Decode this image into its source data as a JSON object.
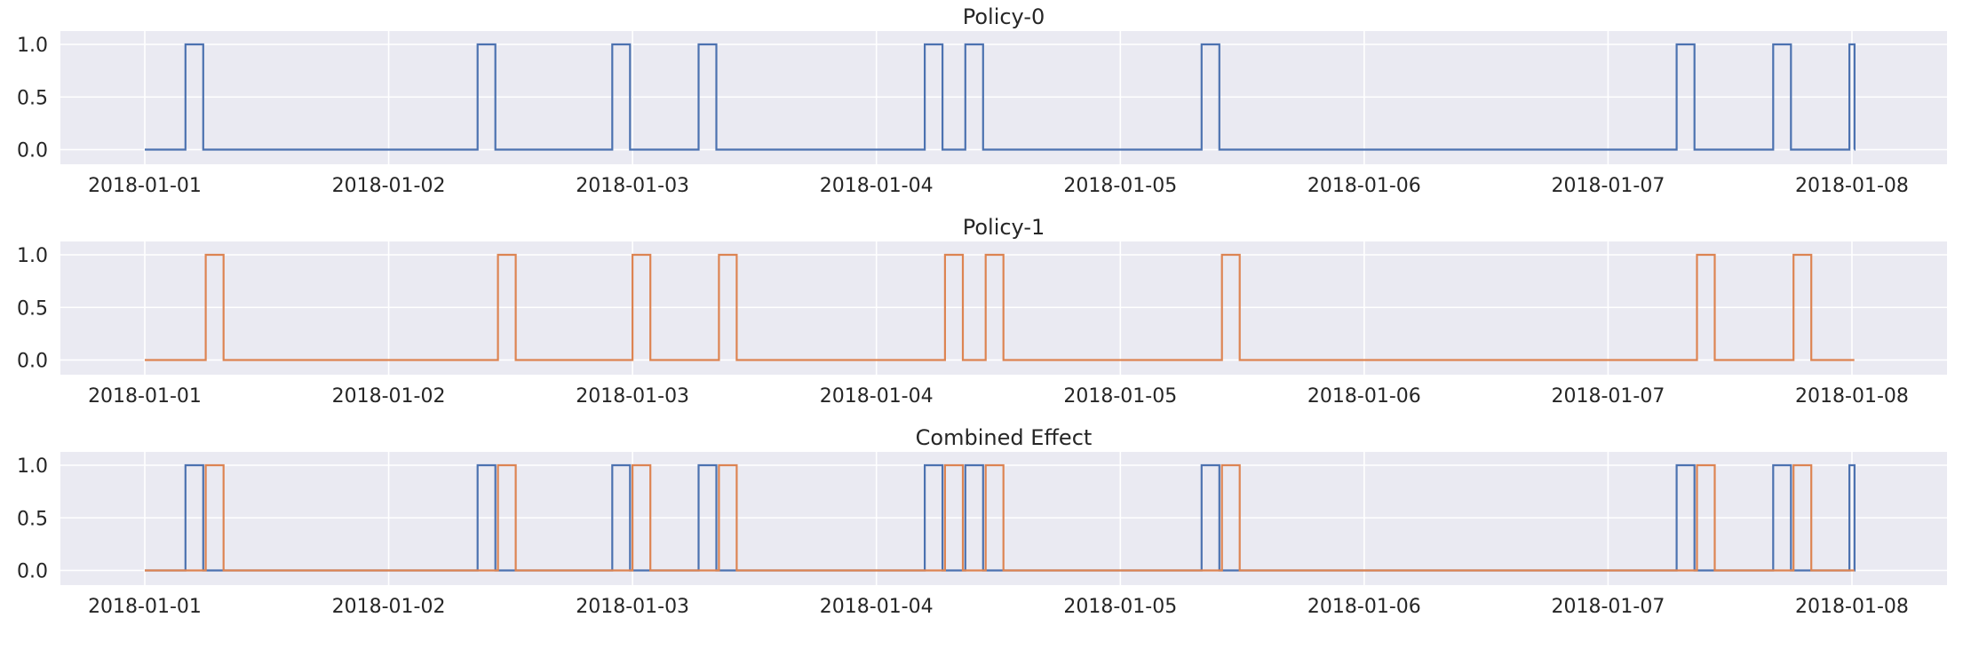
{
  "chart_data": [
    {
      "type": "line",
      "title": "Policy-0",
      "xlabel": "",
      "ylabel": "",
      "xlim": [
        "2018-01-01",
        "2018-01-08"
      ],
      "ylim": [
        0,
        1
      ],
      "x_ticks": [
        "2018-01-01",
        "2018-01-02",
        "2018-01-03",
        "2018-01-04",
        "2018-01-05",
        "2018-01-06",
        "2018-01-07",
        "2018-01-08"
      ],
      "y_ticks": [
        "0.0",
        "0.5",
        "1.0"
      ],
      "grid": true,
      "series": [
        {
          "color": "#4c72b0",
          "step": true,
          "on_intervals": [
            [
              "2018-01-01 04:00",
              "2018-01-01 05:45"
            ],
            [
              "2018-01-02 08:45",
              "2018-01-02 10:30"
            ],
            [
              "2018-01-02 22:00",
              "2018-01-02 23:45"
            ],
            [
              "2018-01-03 06:30",
              "2018-01-03 08:15"
            ],
            [
              "2018-01-04 04:45",
              "2018-01-04 06:30"
            ],
            [
              "2018-01-04 08:45",
              "2018-01-04 10:30"
            ],
            [
              "2018-01-05 08:00",
              "2018-01-05 09:45"
            ],
            [
              "2018-01-07 06:45",
              "2018-01-07 08:30"
            ],
            [
              "2018-01-07 16:15",
              "2018-01-07 18:00"
            ],
            [
              "2018-01-07 23:45",
              "2018-01-08 00:15"
            ]
          ]
        }
      ]
    },
    {
      "type": "line",
      "title": "Policy-1",
      "xlabel": "",
      "ylabel": "",
      "xlim": [
        "2018-01-01",
        "2018-01-08"
      ],
      "ylim": [
        0,
        1
      ],
      "x_ticks": [
        "2018-01-01",
        "2018-01-02",
        "2018-01-03",
        "2018-01-04",
        "2018-01-05",
        "2018-01-06",
        "2018-01-07",
        "2018-01-08"
      ],
      "y_ticks": [
        "0.0",
        "0.5",
        "1.0"
      ],
      "grid": true,
      "series": [
        {
          "color": "#dd8452",
          "step": true,
          "on_intervals": [
            [
              "2018-01-01 06:00",
              "2018-01-01 07:45"
            ],
            [
              "2018-01-02 10:45",
              "2018-01-02 12:30"
            ],
            [
              "2018-01-03 00:00",
              "2018-01-03 01:45"
            ],
            [
              "2018-01-03 08:30",
              "2018-01-03 10:15"
            ],
            [
              "2018-01-04 06:45",
              "2018-01-04 08:30"
            ],
            [
              "2018-01-04 10:45",
              "2018-01-04 12:30"
            ],
            [
              "2018-01-05 10:00",
              "2018-01-05 11:45"
            ],
            [
              "2018-01-07 08:45",
              "2018-01-07 10:30"
            ],
            [
              "2018-01-07 18:15",
              "2018-01-07 20:00"
            ]
          ]
        }
      ]
    },
    {
      "type": "line",
      "title": "Combined Effect",
      "xlabel": "",
      "ylabel": "",
      "xlim": [
        "2018-01-01",
        "2018-01-08"
      ],
      "ylim": [
        0,
        1
      ],
      "x_ticks": [
        "2018-01-01",
        "2018-01-02",
        "2018-01-03",
        "2018-01-04",
        "2018-01-05",
        "2018-01-06",
        "2018-01-07",
        "2018-01-08"
      ],
      "y_ticks": [
        "0.0",
        "0.5",
        "1.0"
      ],
      "grid": true,
      "series": [
        {
          "color": "#4c72b0",
          "step": true,
          "on_intervals": [
            [
              "2018-01-01 04:00",
              "2018-01-01 05:45"
            ],
            [
              "2018-01-02 08:45",
              "2018-01-02 10:30"
            ],
            [
              "2018-01-02 22:00",
              "2018-01-02 23:45"
            ],
            [
              "2018-01-03 06:30",
              "2018-01-03 08:15"
            ],
            [
              "2018-01-04 04:45",
              "2018-01-04 06:30"
            ],
            [
              "2018-01-04 08:45",
              "2018-01-04 10:30"
            ],
            [
              "2018-01-05 08:00",
              "2018-01-05 09:45"
            ],
            [
              "2018-01-07 06:45",
              "2018-01-07 08:30"
            ],
            [
              "2018-01-07 16:15",
              "2018-01-07 18:00"
            ],
            [
              "2018-01-07 23:45",
              "2018-01-08 00:15"
            ]
          ]
        },
        {
          "color": "#dd8452",
          "step": true,
          "on_intervals": [
            [
              "2018-01-01 06:00",
              "2018-01-01 07:45"
            ],
            [
              "2018-01-02 10:45",
              "2018-01-02 12:30"
            ],
            [
              "2018-01-03 00:00",
              "2018-01-03 01:45"
            ],
            [
              "2018-01-03 08:30",
              "2018-01-03 10:15"
            ],
            [
              "2018-01-04 06:45",
              "2018-01-04 08:30"
            ],
            [
              "2018-01-04 10:45",
              "2018-01-04 12:30"
            ],
            [
              "2018-01-05 10:00",
              "2018-01-05 11:45"
            ],
            [
              "2018-01-07 08:45",
              "2018-01-07 10:30"
            ],
            [
              "2018-01-07 18:15",
              "2018-01-07 20:00"
            ]
          ]
        }
      ]
    }
  ]
}
